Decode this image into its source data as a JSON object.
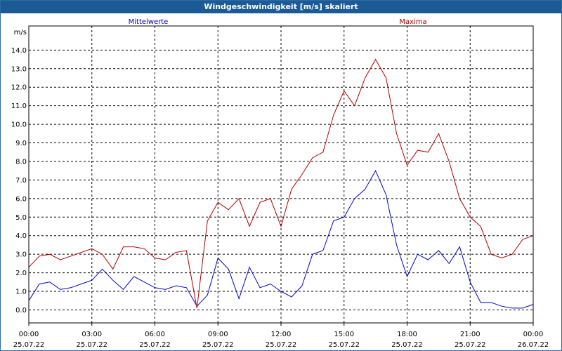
{
  "window": {
    "title": "Windgeschwindigkeit [m/s] skaliert"
  },
  "chart_data": {
    "type": "line",
    "title": "Windgeschwindigkeit [m/s] skaliert",
    "ylabel": "m/s",
    "xlabel": "",
    "ylim": [
      -0.7,
      15.3
    ],
    "xlim_hours": [
      0,
      24
    ],
    "grid": true,
    "legend_placement": "top",
    "y_ticks": [
      "0.0",
      "1.0",
      "2.0",
      "3.0",
      "4.0",
      "5.0",
      "6.0",
      "7.0",
      "8.0",
      "9.0",
      "10.0",
      "11.0",
      "12.0",
      "13.0",
      "14.0"
    ],
    "x_ticks": [
      {
        "time": "00:00",
        "date": "25.07.22"
      },
      {
        "time": "03:00",
        "date": "25.07.22"
      },
      {
        "time": "06:00",
        "date": "25.07.22"
      },
      {
        "time": "09:00",
        "date": "25.07.22"
      },
      {
        "time": "12:00",
        "date": "25.07.22"
      },
      {
        "time": "15:00",
        "date": "25.07.22"
      },
      {
        "time": "18:00",
        "date": "25.07.22"
      },
      {
        "time": "21:00",
        "date": "25.07.22"
      },
      {
        "time": "00:00",
        "date": "26.07.22"
      }
    ],
    "x_hours": [
      0,
      0.5,
      1,
      1.5,
      2,
      2.5,
      3,
      3.5,
      4,
      4.5,
      5,
      5.5,
      6,
      6.5,
      7,
      7.5,
      8,
      8.5,
      9,
      9.5,
      10,
      10.5,
      11,
      11.5,
      12,
      12.5,
      13,
      13.5,
      14,
      14.5,
      15,
      15.5,
      16,
      16.5,
      17,
      17.5,
      18,
      18.5,
      19,
      19.5,
      20,
      20.5,
      21,
      21.5,
      22,
      22.5,
      23,
      23.5,
      24
    ],
    "series": [
      {
        "name": "Mittelwerte",
        "color": "#0000cc",
        "values": [
          0.5,
          1.4,
          1.5,
          1.1,
          1.2,
          1.4,
          1.6,
          2.2,
          1.6,
          1.1,
          1.8,
          1.5,
          1.2,
          1.1,
          1.3,
          1.2,
          0.2,
          0.8,
          2.8,
          2.2,
          0.6,
          2.3,
          1.2,
          1.4,
          1.0,
          0.7,
          1.3,
          3.0,
          3.2,
          4.8,
          5.0,
          6.0,
          6.5,
          7.5,
          6.2,
          3.5,
          1.8,
          3.0,
          2.7,
          3.2,
          2.5,
          3.4,
          1.5,
          0.4,
          0.4,
          0.2,
          0.1,
          0.1,
          0.3
        ]
      },
      {
        "name": "Maxima",
        "color": "#b00000",
        "values": [
          2.3,
          2.9,
          3.0,
          2.7,
          2.9,
          3.1,
          3.3,
          3.0,
          2.2,
          3.4,
          3.4,
          3.3,
          2.8,
          2.7,
          3.1,
          3.2,
          0.1,
          4.8,
          5.8,
          5.4,
          6.0,
          4.5,
          5.8,
          6.0,
          4.5,
          6.5,
          7.3,
          8.2,
          8.5,
          10.5,
          11.8,
          11.0,
          12.5,
          13.5,
          12.5,
          9.5,
          7.8,
          8.6,
          8.5,
          9.5,
          8.0,
          6.0,
          5.0,
          4.5,
          3.0,
          2.8,
          3.0,
          3.8,
          4.0
        ]
      }
    ]
  }
}
